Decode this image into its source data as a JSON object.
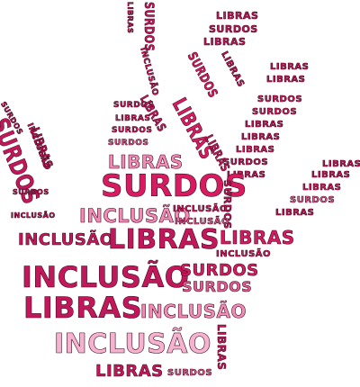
{
  "words": {
    "libras": "LIBRAS",
    "surdos": "SURDOS",
    "inclusao": "INCLUSÃO"
  },
  "colors": {
    "dark_magenta": "#c2185b",
    "magenta": "#d81b60",
    "pink": "#e75a92",
    "light_pink": "#f28cb6",
    "pale_pink": "#f6b3cf",
    "outline": "#3a0a1e"
  }
}
